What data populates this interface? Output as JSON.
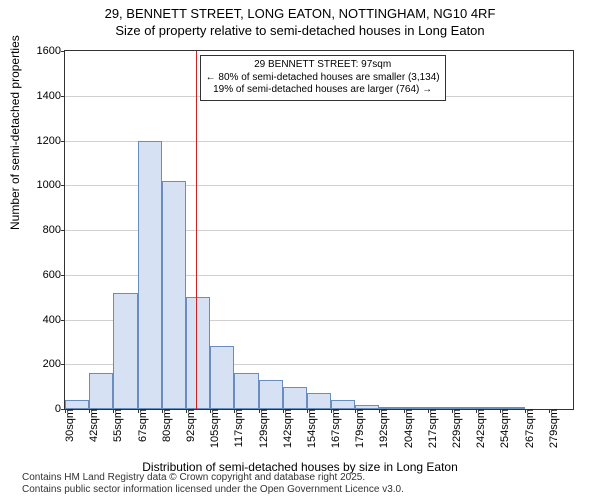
{
  "title_line1": "29, BENNETT STREET, LONG EATON, NOTTINGHAM, NG10 4RF",
  "title_line2": "Size of property relative to semi-detached houses in Long Eaton",
  "y_axis_label": "Number of semi-detached properties",
  "x_axis_label": "Distribution of semi-detached houses by size in Long Eaton",
  "footer_line1": "Contains HM Land Registry data © Crown copyright and database right 2025.",
  "footer_line2": "Contains public sector information licensed under the Open Government Licence v3.0.",
  "chart": {
    "type": "histogram",
    "background_color": "#ffffff",
    "grid_color": "#999999",
    "border_color": "#333333",
    "bar_fill": "#d6e2f3",
    "bar_stroke": "#6a8dbf",
    "reference_line_color": "#cc2222",
    "ylim": [
      0,
      1600
    ],
    "ytick_step": 200,
    "yticks": [
      0,
      200,
      400,
      600,
      800,
      1000,
      1200,
      1400,
      1600
    ],
    "x_tick_labels": [
      "30sqm",
      "42sqm",
      "55sqm",
      "67sqm",
      "80sqm",
      "92sqm",
      "105sqm",
      "117sqm",
      "129sqm",
      "142sqm",
      "154sqm",
      "167sqm",
      "179sqm",
      "192sqm",
      "204sqm",
      "217sqm",
      "229sqm",
      "242sqm",
      "254sqm",
      "267sqm",
      "279sqm"
    ],
    "values": [
      40,
      160,
      520,
      1200,
      1020,
      500,
      280,
      160,
      130,
      100,
      70,
      40,
      20,
      10,
      5,
      3,
      2,
      1,
      1,
      0,
      0
    ],
    "reference_value_index": 5.4,
    "annotation": {
      "line1": "29 BENNETT STREET: 97sqm",
      "line2": "← 80% of semi-detached houses are smaller (3,134)",
      "line3": "19% of semi-detached houses are larger (764) →"
    },
    "title_fontsize": 13,
    "label_fontsize": 12,
    "tick_fontsize": 11,
    "annotation_fontsize": 10,
    "footer_fontsize": 10
  }
}
